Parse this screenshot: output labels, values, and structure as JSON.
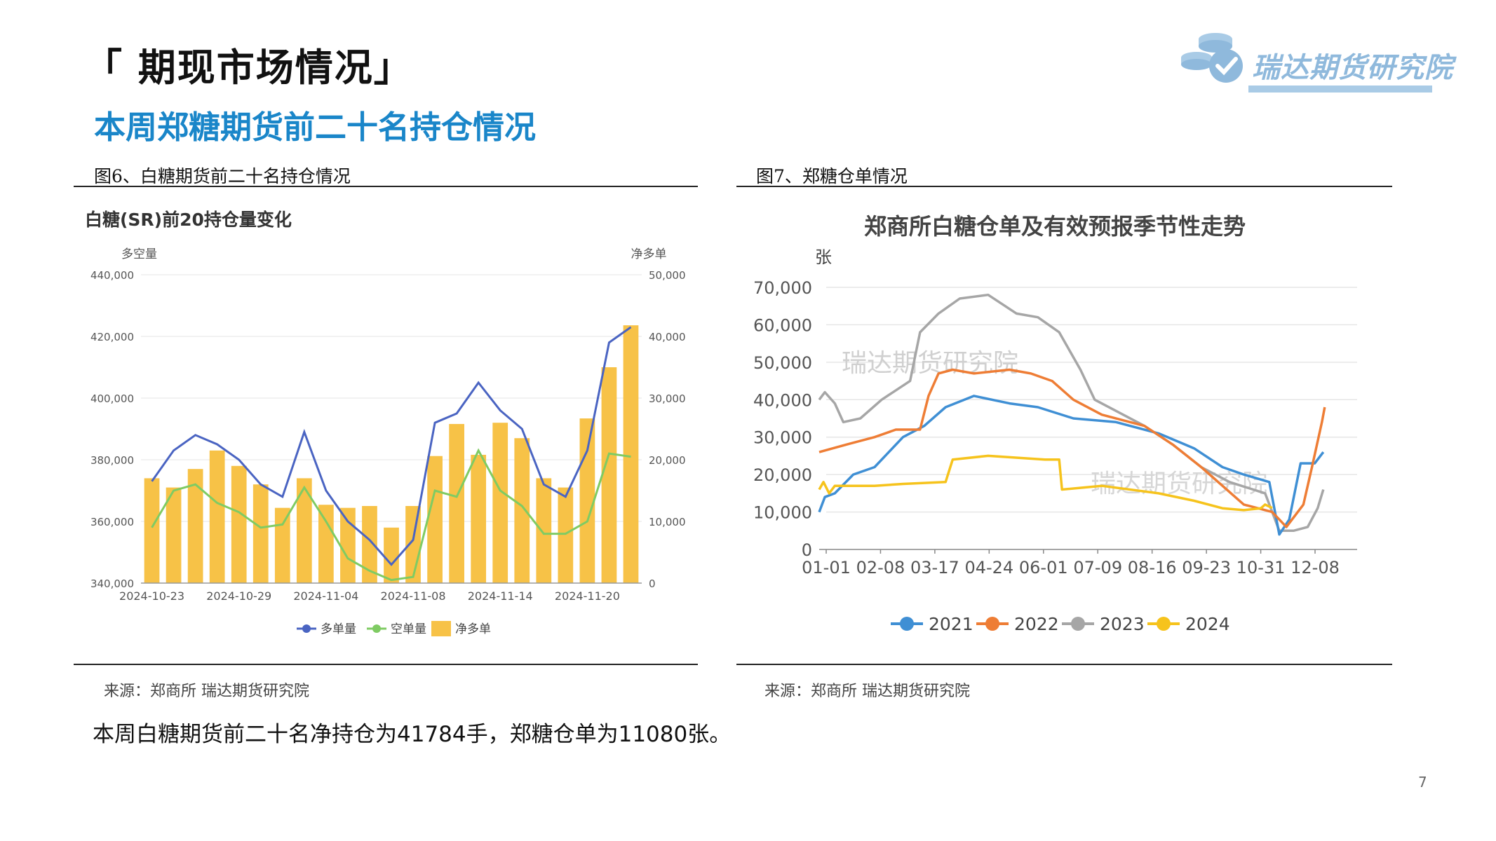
{
  "slide": {
    "title": "「 期现市场情况」",
    "subtitle": "本周郑糖期货前二十名持仓情况",
    "logo_text": "瑞达期货研究院",
    "summary": "本周白糖期货前二十名净持仓为41784手，郑糖仓单为11080张。",
    "page_number": "7"
  },
  "figures": [
    {
      "caption": "图6、白糖期货前二十名持仓情况",
      "source": "来源：郑商所   瑞达期货研究院"
    },
    {
      "caption": "图7、郑糖仓单情况",
      "source": "来源：郑商所   瑞达期货研究院"
    }
  ],
  "colors": {
    "title_blue": "#1a86c9",
    "long": "#4a64c2",
    "short": "#7fcb63",
    "net": "#f7c247",
    "s2021": "#3f8fd4",
    "s2022": "#ee7d35",
    "s2023": "#a6a6a6",
    "s2024": "#f6c31c"
  },
  "chart_data": [
    {
      "type": "bar+line",
      "title": "白糖(SR)前20持仓量变化",
      "ylabel_left": "多空量",
      "ylabel_right": "净多单",
      "ylim_left": [
        340000,
        440000
      ],
      "ylim_right": [
        0,
        50000
      ],
      "yticks_left": [
        "340,000",
        "360,000",
        "380,000",
        "400,000",
        "420,000",
        "440,000"
      ],
      "yticks_right": [
        "0",
        "10,000",
        "20,000",
        "30,000",
        "40,000",
        "50,000"
      ],
      "xtick_labels": [
        "2024-10-23",
        "2024-10-29",
        "2024-11-04",
        "2024-11-08",
        "2024-11-14",
        "2024-11-20"
      ],
      "xtick_index": [
        0,
        4,
        8,
        12,
        16,
        20
      ],
      "x": [
        "2024-10-23",
        "2024-10-24",
        "2024-10-25",
        "2024-10-28",
        "2024-10-29",
        "2024-10-30",
        "2024-10-31",
        "2024-11-01",
        "2024-11-04",
        "2024-11-05",
        "2024-11-06",
        "2024-11-07",
        "2024-11-08",
        "2024-11-11",
        "2024-11-12",
        "2024-11-13",
        "2024-11-14",
        "2024-11-15",
        "2024-11-18",
        "2024-11-19",
        "2024-11-20",
        "2024-11-21",
        "2024-11-22"
      ],
      "series": [
        {
          "name": "多单量",
          "axis": "left",
          "kind": "line",
          "values": [
            373000,
            383000,
            388000,
            385000,
            380000,
            372000,
            368000,
            389000,
            370000,
            360000,
            354000,
            346000,
            354000,
            392000,
            395000,
            405000,
            396000,
            390000,
            372000,
            368000,
            383000,
            418000,
            423000
          ]
        },
        {
          "name": "空单量",
          "axis": "left",
          "kind": "line",
          "values": [
            358000,
            370000,
            372000,
            366000,
            363000,
            358000,
            359000,
            371000,
            360000,
            348000,
            344000,
            341000,
            342000,
            370000,
            368000,
            383000,
            370000,
            365000,
            356000,
            356000,
            360000,
            382000,
            381000
          ]
        },
        {
          "name": "净多单",
          "axis": "right",
          "kind": "bar",
          "values": [
            17000,
            15500,
            18500,
            21500,
            19000,
            16000,
            12200,
            17000,
            12700,
            12200,
            12500,
            9000,
            12500,
            20600,
            25800,
            20800,
            26000,
            23500,
            17000,
            15500,
            26700,
            35000,
            41800
          ]
        }
      ],
      "legend": [
        "多单量",
        "空单量",
        "净多单"
      ]
    },
    {
      "type": "line",
      "title": "郑商所白糖仓单及有效预报季节性走势",
      "ylabel": "张",
      "ylim": [
        0,
        70000
      ],
      "yticks": [
        "0",
        "10,000",
        "20,000",
        "30,000",
        "40,000",
        "50,000",
        "60,000",
        "70,000"
      ],
      "xtick_labels": [
        "01-01",
        "02-08",
        "03-17",
        "04-24",
        "06-01",
        "07-09",
        "08-16",
        "09-23",
        "10-31",
        "12-08"
      ],
      "watermark": "瑞达期货研究院",
      "series": [
        {
          "name": "2021",
          "points": [
            [
              1,
              10000
            ],
            [
              5,
              14000
            ],
            [
              12,
              15000
            ],
            [
              25,
              20000
            ],
            [
              40,
              22000
            ],
            [
              60,
              30000
            ],
            [
              75,
              33000
            ],
            [
              90,
              38000
            ],
            [
              110,
              41000
            ],
            [
              135,
              39000
            ],
            [
              155,
              38000
            ],
            [
              180,
              35000
            ],
            [
              210,
              34000
            ],
            [
              240,
              31000
            ],
            [
              265,
              27000
            ],
            [
              285,
              22000
            ],
            [
              300,
              20000
            ],
            [
              318,
              18000
            ],
            [
              325,
              4000
            ],
            [
              332,
              8000
            ],
            [
              340,
              23000
            ],
            [
              350,
              23000
            ],
            [
              356,
              26000
            ]
          ]
        },
        {
          "name": "2022",
          "points": [
            [
              1,
              26000
            ],
            [
              20,
              28000
            ],
            [
              40,
              30000
            ],
            [
              55,
              32000
            ],
            [
              72,
              32000
            ],
            [
              78,
              41000
            ],
            [
              85,
              47000
            ],
            [
              95,
              48000
            ],
            [
              110,
              47000
            ],
            [
              135,
              48000
            ],
            [
              150,
              47000
            ],
            [
              165,
              45000
            ],
            [
              180,
              40000
            ],
            [
              200,
              36000
            ],
            [
              230,
              33000
            ],
            [
              250,
              28000
            ],
            [
              270,
              22000
            ],
            [
              300,
              12000
            ],
            [
              320,
              10000
            ],
            [
              330,
              6000
            ],
            [
              342,
              12000
            ],
            [
              348,
              22000
            ],
            [
              355,
              34000
            ],
            [
              357,
              38000
            ]
          ]
        },
        {
          "name": "2023",
          "points": [
            [
              1,
              40000
            ],
            [
              5,
              42000
            ],
            [
              12,
              39000
            ],
            [
              18,
              34000
            ],
            [
              30,
              35000
            ],
            [
              45,
              40000
            ],
            [
              65,
              45000
            ],
            [
              72,
              58000
            ],
            [
              85,
              63000
            ],
            [
              100,
              67000
            ],
            [
              120,
              68000
            ],
            [
              140,
              63000
            ],
            [
              155,
              62000
            ],
            [
              170,
              58000
            ],
            [
              185,
              48000
            ],
            [
              195,
              40000
            ],
            [
              210,
              37000
            ],
            [
              230,
              33000
            ],
            [
              250,
              28000
            ],
            [
              270,
              22000
            ],
            [
              290,
              18000
            ],
            [
              315,
              15000
            ],
            [
              325,
              5000
            ],
            [
              335,
              5000
            ],
            [
              345,
              6000
            ],
            [
              352,
              11000
            ],
            [
              356,
              16000
            ]
          ]
        },
        {
          "name": "2024",
          "points": [
            [
              1,
              16000
            ],
            [
              4,
              18000
            ],
            [
              8,
              15000
            ],
            [
              12,
              17000
            ],
            [
              40,
              17000
            ],
            [
              60,
              17500
            ],
            [
              90,
              18000
            ],
            [
              95,
              24000
            ],
            [
              120,
              25000
            ],
            [
              160,
              24000
            ],
            [
              170,
              24000
            ],
            [
              172,
              16000
            ],
            [
              200,
              17000
            ],
            [
              240,
              15000
            ],
            [
              265,
              13000
            ],
            [
              285,
              11000
            ],
            [
              300,
              10500
            ],
            [
              312,
              11000
            ],
            [
              315,
              12000
            ],
            [
              320,
              11080
            ]
          ]
        }
      ],
      "legend": [
        "2021",
        "2022",
        "2023",
        "2024"
      ]
    }
  ]
}
